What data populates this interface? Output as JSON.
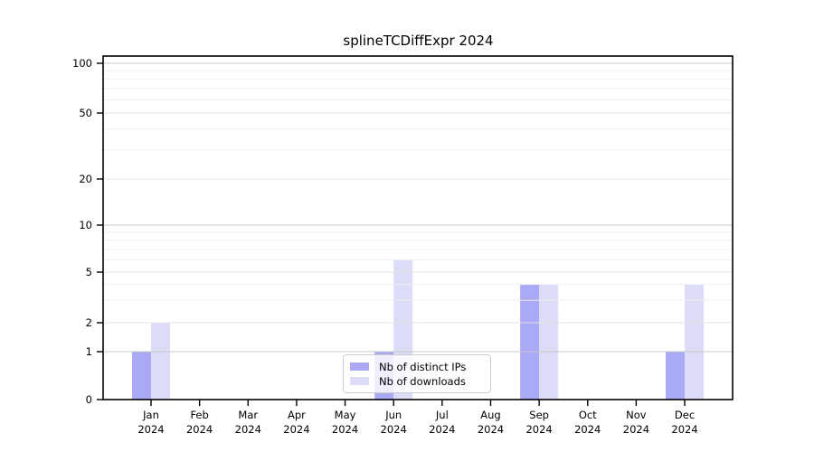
{
  "title": "splineTCDiffExpr 2024",
  "chart_data": {
    "type": "bar",
    "title": "splineTCDiffExpr 2024",
    "categories": [
      "Jan",
      "Feb",
      "Mar",
      "Apr",
      "May",
      "Jun",
      "Jul",
      "Aug",
      "Sep",
      "Oct",
      "Nov",
      "Dec"
    ],
    "category_year": "2024",
    "series": [
      {
        "name": "Nb of distinct IPs",
        "color": "#a9a9f5",
        "values": [
          1,
          0,
          0,
          0,
          0,
          1,
          0,
          0,
          4,
          0,
          0,
          1
        ]
      },
      {
        "name": "Nb of downloads",
        "color": "#dcdcf8",
        "values": [
          2,
          0,
          0,
          0,
          0,
          6,
          0,
          0,
          4,
          0,
          0,
          4
        ]
      }
    ],
    "ylabel": "",
    "xlabel": "",
    "ylim": [
      0,
      100
    ],
    "ytick_labels": [
      "0",
      "1",
      "2",
      "5",
      "10",
      "20",
      "50",
      "100"
    ],
    "ytick_values": [
      0,
      1,
      2,
      5,
      10,
      20,
      50,
      100
    ],
    "minor_grid_values": [
      3,
      4,
      6,
      7,
      8,
      9,
      30,
      40,
      60,
      70,
      80,
      90
    ],
    "scale": "log-like (0 pinned to baseline)",
    "grid": true,
    "legend_position": "bottom-center"
  },
  "legend": {
    "items": [
      {
        "label": "Nb of distinct IPs",
        "color": "#a9a9f5"
      },
      {
        "label": "Nb of downloads",
        "color": "#dcdcf8"
      }
    ]
  },
  "colors": {
    "axis": "#000000",
    "major_grid": "#c9c9c9",
    "labeled_grid": "#e4e4e4",
    "minor_grid": "#efefef",
    "text": "#000000"
  }
}
